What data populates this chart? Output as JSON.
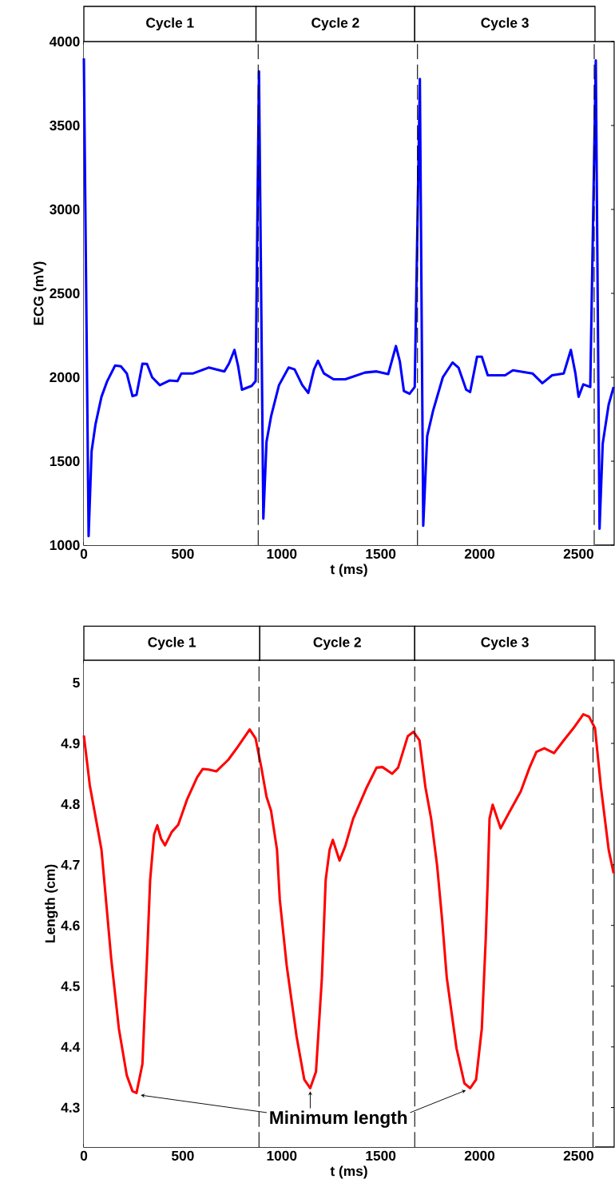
{
  "chart_data": [
    {
      "type": "line",
      "xlabel": "t (ms)",
      "ylabel": "ECG (mV)",
      "xlim": [
        0,
        2680
      ],
      "ylim": [
        1000,
        4000
      ],
      "xticks": [
        0,
        500,
        1000,
        1500,
        2000,
        2500
      ],
      "yticks": [
        1000,
        1500,
        2000,
        2500,
        3000,
        3500,
        4000
      ],
      "x": [
        0,
        24,
        39,
        59,
        89,
        118,
        158,
        187,
        217,
        246,
        266,
        296,
        319,
        345,
        384,
        434,
        473,
        493,
        552,
        631,
        710,
        733,
        761,
        779,
        799,
        848,
        868,
        885,
        907,
        923,
        946,
        986,
        1035,
        1065,
        1104,
        1134,
        1163,
        1183,
        1213,
        1262,
        1321,
        1420,
        1479,
        1538,
        1577,
        1597,
        1617,
        1646,
        1672,
        1698,
        1715,
        1735,
        1765,
        1814,
        1863,
        1893,
        1932,
        1952,
        1987,
        2011,
        2041,
        2129,
        2168,
        2267,
        2317,
        2366,
        2425,
        2461,
        2484,
        2500,
        2524,
        2559,
        2587,
        2606,
        2622,
        2652,
        2677
      ],
      "series": [
        {
          "color": "#0000ff",
          "values": [
            3900,
            1054,
            1558,
            1721,
            1884,
            1977,
            2070,
            2065,
            2023,
            1888,
            1895,
            2081,
            2080,
            2000,
            1953,
            1981,
            1977,
            2023,
            2023,
            2058,
            2035,
            2081,
            2163,
            2070,
            1926,
            1949,
            1977,
            3823,
            1158,
            1616,
            1767,
            1953,
            2058,
            2047,
            1953,
            1907,
            2047,
            2098,
            2023,
            1988,
            1988,
            2028,
            2035,
            2019,
            2186,
            2093,
            1919,
            1902,
            1942,
            3777,
            1116,
            1651,
            1802,
            2000,
            2088,
            2058,
            1926,
            1912,
            2123,
            2123,
            2012,
            2012,
            2042,
            2023,
            1965,
            2012,
            2023,
            2163,
            2023,
            1884,
            1958,
            1942,
            3888,
            1098,
            1605,
            1837,
            1942
          ]
        }
      ],
      "bands": [
        {
          "axis": "x",
          "from": 0,
          "to": 870,
          "label": "Cycle 1"
        },
        {
          "axis": "x",
          "from": 870,
          "to": 1672,
          "label": "Cycle 2"
        },
        {
          "axis": "x",
          "from": 1672,
          "to": 2583,
          "label": "Cycle 3"
        }
      ],
      "ref_lines": [
        {
          "axis": "x",
          "value": 881,
          "line_style": "dashed"
        },
        {
          "axis": "x",
          "value": 1686,
          "line_style": "dashed"
        },
        {
          "axis": "x",
          "value": 2579,
          "line_style": "dashed"
        }
      ]
    },
    {
      "type": "line",
      "xlabel": "t (ms)",
      "ylabel": "Length (cm)",
      "xlim": [
        0,
        2680
      ],
      "ylim": [
        4.235,
        5.037
      ],
      "xticks": [
        0,
        500,
        1000,
        1500,
        2000,
        2500
      ],
      "yticks": [
        4.3,
        4.4,
        4.5,
        4.6,
        4.7,
        4.8,
        4.9,
        5
      ],
      "x": [
        0,
        30,
        59,
        89,
        108,
        138,
        177,
        217,
        246,
        266,
        296,
        319,
        335,
        355,
        371,
        390,
        410,
        444,
        477,
        522,
        572,
        601,
        631,
        670,
        730,
        779,
        838,
        868,
        897,
        923,
        946,
        976,
        990,
        1025,
        1075,
        1114,
        1144,
        1173,
        1203,
        1222,
        1242,
        1258,
        1292,
        1321,
        1361,
        1430,
        1479,
        1509,
        1558,
        1588,
        1637,
        1666,
        1696,
        1726,
        1755,
        1785,
        1810,
        1834,
        1883,
        1923,
        1952,
        1982,
        2011,
        2031,
        2041,
        2050,
        2066,
        2106,
        2149,
        2208,
        2252,
        2287,
        2327,
        2376,
        2425,
        2474,
        2524,
        2553,
        2583,
        2613,
        2652,
        2677
      ],
      "series": [
        {
          "color": "#ff0000",
          "values": [
            4.913,
            4.831,
            4.779,
            4.725,
            4.656,
            4.546,
            4.43,
            4.353,
            4.327,
            4.324,
            4.372,
            4.546,
            4.675,
            4.75,
            4.765,
            4.743,
            4.732,
            4.754,
            4.766,
            4.808,
            4.844,
            4.858,
            4.857,
            4.854,
            4.873,
            4.895,
            4.923,
            4.908,
            4.86,
            4.812,
            4.789,
            4.725,
            4.643,
            4.534,
            4.417,
            4.346,
            4.332,
            4.359,
            4.514,
            4.675,
            4.725,
            4.741,
            4.707,
            4.731,
            4.776,
            4.828,
            4.86,
            4.861,
            4.85,
            4.86,
            4.912,
            4.919,
            4.905,
            4.828,
            4.776,
            4.699,
            4.611,
            4.514,
            4.398,
            4.34,
            4.332,
            4.346,
            4.43,
            4.579,
            4.675,
            4.776,
            4.799,
            4.76,
            4.786,
            4.821,
            4.86,
            4.886,
            4.892,
            4.884,
            4.905,
            4.925,
            4.948,
            4.944,
            4.925,
            4.828,
            4.725,
            4.686
          ]
        }
      ],
      "bands": [
        {
          "axis": "x",
          "from": 0,
          "to": 889,
          "label": "Cycle 1"
        },
        {
          "axis": "x",
          "from": 889,
          "to": 1672,
          "label": "Cycle 2"
        },
        {
          "axis": "x",
          "from": 1672,
          "to": 2583,
          "label": "Cycle 3"
        }
      ],
      "ref_lines": [
        {
          "axis": "x",
          "value": 885,
          "line_style": "dashed"
        },
        {
          "axis": "x",
          "value": 1672,
          "line_style": "dashed"
        },
        {
          "axis": "x",
          "value": 2573,
          "line_style": "dashed"
        }
      ],
      "annotations": [
        "Minimum length"
      ]
    }
  ]
}
